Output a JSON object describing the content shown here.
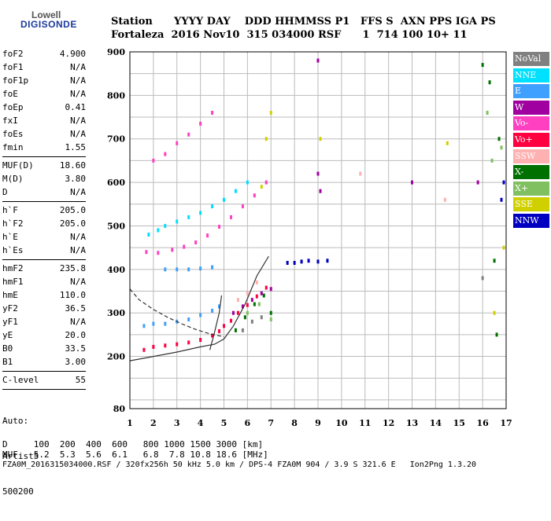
{
  "logo": {
    "line1": "Lowell",
    "line2": "DIGISONDE"
  },
  "header": {
    "row1": "Station      YYYY DAY    DDD HHMMSS P1   FFS S  AXN PPS IGA PS",
    "row2": "Fortaleza  2016 Nov10  315 034000 RSF      1  714 100 10+ 11"
  },
  "params": {
    "group1": [
      {
        "label": "foF2",
        "value": "4.900"
      },
      {
        "label": "foF1",
        "value": "N/A"
      },
      {
        "label": "foF1p",
        "value": "N/A"
      },
      {
        "label": "foE",
        "value": "N/A"
      },
      {
        "label": "foEp",
        "value": "0.41"
      },
      {
        "label": "fxI",
        "value": "N/A"
      },
      {
        "label": "foEs",
        "value": "N/A"
      },
      {
        "label": "fmin",
        "value": "1.55"
      }
    ],
    "group2": [
      {
        "label": "MUF(D)",
        "value": "18.60"
      },
      {
        "label": "M(D)",
        "value": "3.80"
      },
      {
        "label": "D",
        "value": "N/A"
      }
    ],
    "group3": [
      {
        "label": "h`F",
        "value": "205.0"
      },
      {
        "label": "h`F2",
        "value": "205.0"
      },
      {
        "label": "h`E",
        "value": "N/A"
      },
      {
        "label": "h`Es",
        "value": "N/A"
      }
    ],
    "group4": [
      {
        "label": "hmF2",
        "value": "235.8"
      },
      {
        "label": "hmF1",
        "value": "N/A"
      },
      {
        "label": "hmE",
        "value": "110.0"
      },
      {
        "label": "yF2",
        "value": "36.5"
      },
      {
        "label": "yF1",
        "value": "N/A"
      },
      {
        "label": "yE",
        "value": "20.0"
      },
      {
        "label": "B0",
        "value": "33.5"
      },
      {
        "label": "B1",
        "value": "3.00"
      }
    ],
    "group5": [
      {
        "label": "C-level",
        "value": "55"
      }
    ],
    "auto": [
      "Auto:",
      "Artist5",
      "500200"
    ]
  },
  "legend": [
    {
      "label": "NoVal",
      "color": "#808080"
    },
    {
      "label": "NNE",
      "color": "#00e0ff"
    },
    {
      "label": "E",
      "color": "#40a0ff"
    },
    {
      "label": "W",
      "color": "#a000a0"
    },
    {
      "label": "Vo-",
      "color": "#ff40c0"
    },
    {
      "label": "Vo+",
      "color": "#ff0040"
    },
    {
      "label": "SSW",
      "color": "#ffb0b0"
    },
    {
      "label": "X-",
      "color": "#007000"
    },
    {
      "label": "X+",
      "color": "#80c060"
    },
    {
      "label": "SSE",
      "color": "#d0d000"
    },
    {
      "label": "NNW",
      "color": "#0000c0"
    }
  ],
  "footer": {
    "line1": "D     100  200  400  600   800 1000 1500 3000 [km]",
    "line2": "MUF   5.2  5.3  5.6  6.1   6.8  7.8 10.8 18.6 [MHz]",
    "line3": "FZA0M_2016315034000.RSF / 320fx256h 50 kHz 5.0 km / DPS-4 FZA0M 904 / 3.9 S 321.6 E   Ion2Png 1.3.20"
  },
  "chart_data": {
    "type": "scatter",
    "title": "",
    "xlabel": "",
    "ylabel": "",
    "xlim": [
      1,
      17
    ],
    "ylim": [
      80,
      900
    ],
    "x_ticks": [
      1,
      2,
      3,
      4,
      5,
      6,
      7,
      8,
      9,
      10,
      11,
      12,
      13,
      14,
      15,
      16,
      17
    ],
    "y_ticks": [
      80,
      200,
      300,
      400,
      500,
      600,
      700,
      800,
      900
    ],
    "grid": true,
    "legend_position": "right",
    "series": [
      {
        "name": "Vo+",
        "points": [
          [
            1.6,
            215
          ],
          [
            2.0,
            222
          ],
          [
            2.5,
            225
          ],
          [
            3.0,
            228
          ],
          [
            3.5,
            232
          ],
          [
            4.0,
            238
          ],
          [
            4.5,
            248
          ],
          [
            4.8,
            258
          ],
          [
            5.0,
            270
          ],
          [
            5.3,
            282
          ],
          [
            5.6,
            300
          ],
          [
            6.0,
            318
          ],
          [
            6.4,
            338
          ],
          [
            6.8,
            358
          ]
        ]
      },
      {
        "name": "Vo-",
        "points": [
          [
            1.7,
            440
          ],
          [
            2.2,
            438
          ],
          [
            2.8,
            445
          ],
          [
            3.3,
            452
          ],
          [
            3.8,
            462
          ],
          [
            4.3,
            478
          ],
          [
            4.8,
            498
          ],
          [
            5.3,
            520
          ],
          [
            5.8,
            545
          ],
          [
            6.3,
            570
          ],
          [
            6.8,
            600
          ],
          [
            2.0,
            650
          ],
          [
            2.5,
            665
          ],
          [
            3.0,
            690
          ],
          [
            3.5,
            710
          ],
          [
            4.0,
            735
          ],
          [
            4.5,
            760
          ]
        ]
      },
      {
        "name": "E",
        "points": [
          [
            1.6,
            270
          ],
          [
            2.0,
            275
          ],
          [
            2.5,
            275
          ],
          [
            3.0,
            280
          ],
          [
            3.5,
            285
          ],
          [
            4.0,
            295
          ],
          [
            4.5,
            305
          ],
          [
            4.8,
            315
          ],
          [
            2.5,
            400
          ],
          [
            3.0,
            400
          ],
          [
            3.5,
            400
          ],
          [
            4.0,
            402
          ],
          [
            4.5,
            405
          ]
        ]
      },
      {
        "name": "NNE",
        "points": [
          [
            1.8,
            480
          ],
          [
            2.2,
            490
          ],
          [
            2.5,
            500
          ],
          [
            3.0,
            510
          ],
          [
            3.5,
            520
          ],
          [
            4.0,
            530
          ],
          [
            4.5,
            545
          ],
          [
            5.0,
            560
          ],
          [
            5.5,
            580
          ],
          [
            6.0,
            600
          ]
        ]
      },
      {
        "name": "W",
        "points": [
          [
            5.4,
            300
          ],
          [
            5.8,
            315
          ],
          [
            6.2,
            330
          ],
          [
            6.6,
            345
          ],
          [
            7.0,
            355
          ],
          [
            9.0,
            880
          ],
          [
            9.0,
            620
          ],
          [
            9.1,
            580
          ],
          [
            13.0,
            600
          ],
          [
            15.8,
            600
          ]
        ]
      },
      {
        "name": "X-",
        "points": [
          [
            5.5,
            260
          ],
          [
            5.9,
            290
          ],
          [
            6.3,
            320
          ],
          [
            6.7,
            340
          ],
          [
            7.0,
            300
          ],
          [
            16.0,
            870
          ],
          [
            16.3,
            830
          ],
          [
            16.7,
            700
          ],
          [
            16.5,
            420
          ],
          [
            16.6,
            250
          ]
        ]
      },
      {
        "name": "X+",
        "points": [
          [
            6.0,
            300
          ],
          [
            6.5,
            320
          ],
          [
            7.0,
            285
          ],
          [
            16.2,
            760
          ],
          [
            16.4,
            650
          ],
          [
            16.8,
            680
          ]
        ]
      },
      {
        "name": "SSE",
        "points": [
          [
            6.6,
            590
          ],
          [
            6.8,
            700
          ],
          [
            7.0,
            760
          ],
          [
            9.1,
            700
          ],
          [
            14.5,
            690
          ],
          [
            16.5,
            300
          ],
          [
            16.9,
            450
          ]
        ]
      },
      {
        "name": "NNW",
        "points": [
          [
            7.7,
            415
          ],
          [
            8.0,
            415
          ],
          [
            8.3,
            418
          ],
          [
            8.6,
            420
          ],
          [
            9.0,
            418
          ],
          [
            9.4,
            420
          ],
          [
            16.8,
            560
          ],
          [
            16.9,
            600
          ]
        ]
      },
      {
        "name": "SSW",
        "points": [
          [
            5.6,
            330
          ],
          [
            6.0,
            345
          ],
          [
            6.4,
            370
          ],
          [
            10.8,
            620
          ],
          [
            14.4,
            560
          ]
        ]
      },
      {
        "name": "NoVal",
        "points": [
          [
            5.8,
            260
          ],
          [
            6.2,
            280
          ],
          [
            6.6,
            290
          ],
          [
            16.0,
            380
          ]
        ]
      }
    ],
    "lines": [
      {
        "style": "solid",
        "points": [
          [
            1.0,
            190
          ],
          [
            2.0,
            200
          ],
          [
            3.0,
            210
          ],
          [
            4.0,
            222
          ],
          [
            4.6,
            228
          ],
          [
            5.0,
            240
          ],
          [
            5.4,
            270
          ],
          [
            5.9,
            320
          ],
          [
            6.4,
            385
          ],
          [
            6.9,
            430
          ]
        ]
      },
      {
        "style": "dashed",
        "points": [
          [
            1.0,
            355
          ],
          [
            1.4,
            330
          ],
          [
            2.0,
            308
          ],
          [
            2.6,
            290
          ],
          [
            3.2,
            275
          ],
          [
            3.8,
            262
          ],
          [
            4.4,
            252
          ],
          [
            5.0,
            245
          ]
        ]
      },
      {
        "style": "solid",
        "points": [
          [
            4.4,
            215
          ],
          [
            4.6,
            255
          ],
          [
            4.8,
            300
          ],
          [
            4.9,
            340
          ]
        ]
      }
    ]
  }
}
